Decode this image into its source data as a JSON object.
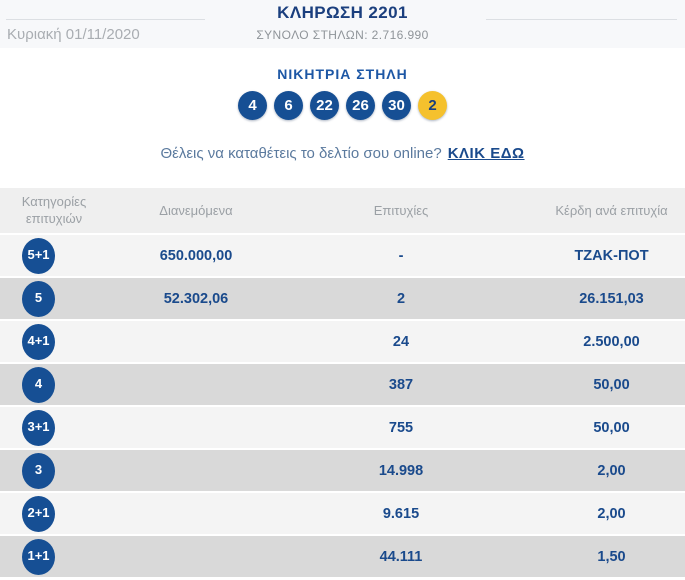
{
  "header": {
    "title": "ΚΛΗΡΩΣΗ 2201",
    "date": "Κυριακή 01/11/2020",
    "total_columns": "ΣΥΝΟΛΟ ΣΤΗΛΩΝ: 2.716.990"
  },
  "winning": {
    "title": "ΝΙΚΗΤΡΙΑ ΣΤΗΛΗ",
    "numbers": [
      "4",
      "6",
      "22",
      "26",
      "30"
    ],
    "joker": "2"
  },
  "promo": {
    "question": "Θέλεις να καταθέτεις το δελτίο σου online?",
    "link_label": "ΚΛΙΚ ΕΔΩ"
  },
  "table": {
    "headers": {
      "category": "Κατηγορίες επιτυχιών",
      "distributed": "Διανεμόμενα",
      "winners": "Επιτυχίες",
      "prize": "Κέρδη ανά επιτυχία"
    },
    "rows": [
      {
        "category": "5+1",
        "distributed": "650.000,00",
        "winners": "-",
        "prize": "ΤΖΑΚ-ΠΟΤ"
      },
      {
        "category": "5",
        "distributed": "52.302,06",
        "winners": "2",
        "prize": "26.151,03"
      },
      {
        "category": "4+1",
        "distributed": "",
        "winners": "24",
        "prize": "2.500,00"
      },
      {
        "category": "4",
        "distributed": "",
        "winners": "387",
        "prize": "50,00"
      },
      {
        "category": "3+1",
        "distributed": "",
        "winners": "755",
        "prize": "50,00"
      },
      {
        "category": "3",
        "distributed": "",
        "winners": "14.998",
        "prize": "2,00"
      },
      {
        "category": "2+1",
        "distributed": "",
        "winners": "9.615",
        "prize": "2,00"
      },
      {
        "category": "1+1",
        "distributed": "",
        "winners": "44.111",
        "prize": "1,50"
      }
    ]
  },
  "colors": {
    "navy": "#1a4a8c",
    "ball_blue": "#164f94",
    "joker_gold": "#f5c12d",
    "gray_text": "#9ba0a5",
    "row_light": "#f4f4f4",
    "row_dark": "#d9d9d9",
    "header_bg": "#efefef",
    "band_bg": "#f7f8fa"
  }
}
